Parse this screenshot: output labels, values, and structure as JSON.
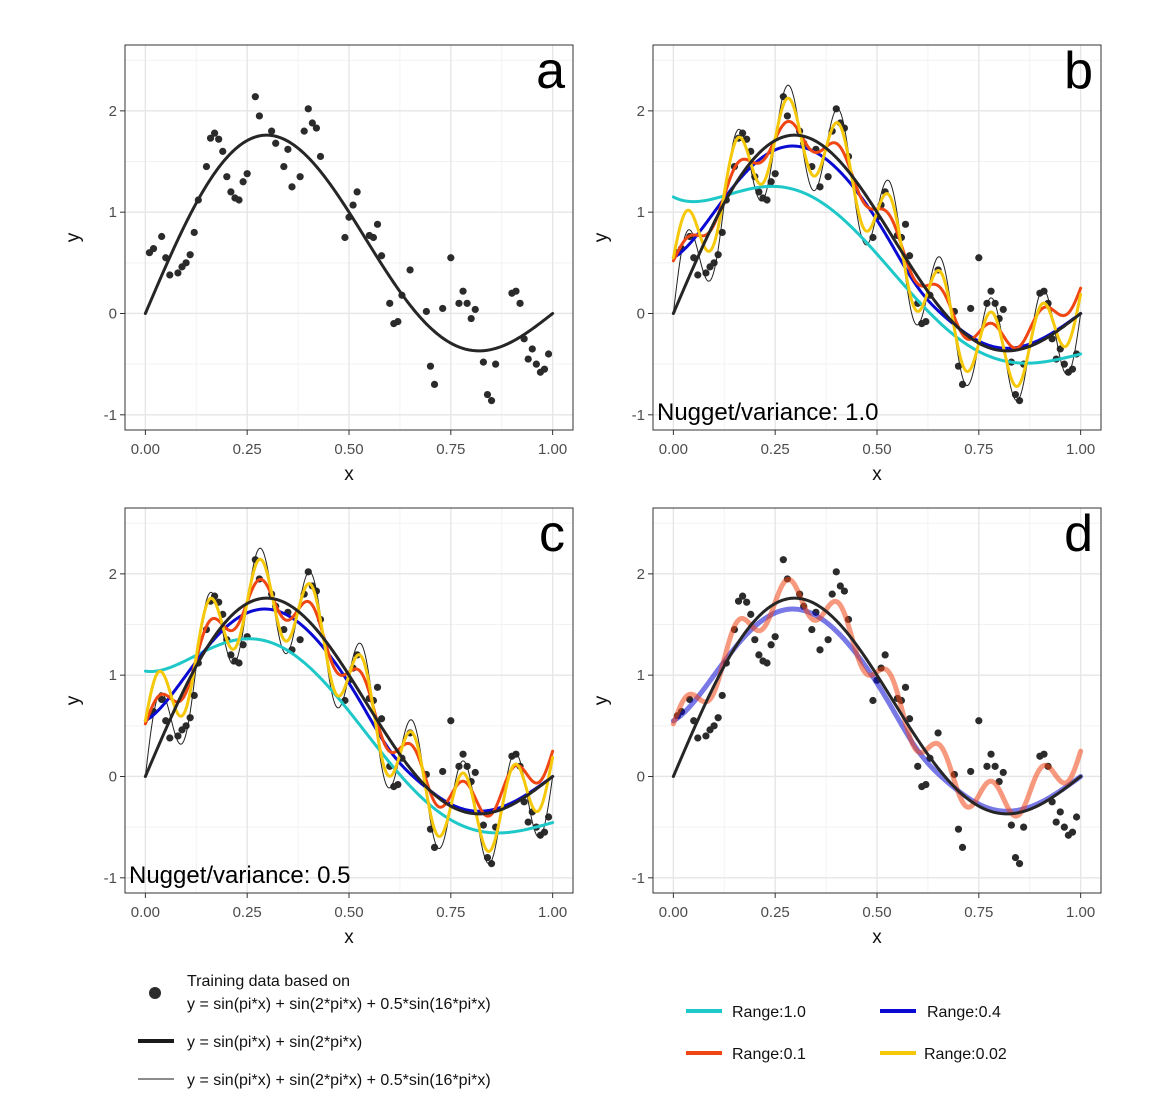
{
  "chart_data": {
    "type": "line",
    "functions": {
      "base": "y = sin(pi*x) + sin(2*pi*x)",
      "noisy": "y = sin(pi*x) + sin(2*pi*x) + 0.5*sin(16*pi*x)"
    },
    "colors": {
      "data_points": "#2b2b2b",
      "base_curve": "#262626",
      "range_1_0": "#1ec8c8",
      "range_0_4": "#0a0ad2",
      "range_0_1": "#f04614",
      "range_0_02": "#f5c80a"
    },
    "training_x": [
      0.01,
      0.02,
      0.04,
      0.05,
      0.06,
      0.08,
      0.09,
      0.1,
      0.11,
      0.12,
      0.13,
      0.15,
      0.16,
      0.17,
      0.18,
      0.19,
      0.2,
      0.21,
      0.22,
      0.23,
      0.24,
      0.25,
      0.27,
      0.28,
      0.31,
      0.32,
      0.34,
      0.35,
      0.36,
      0.38,
      0.39,
      0.4,
      0.41,
      0.42,
      0.43,
      0.49,
      0.5,
      0.51,
      0.52,
      0.55,
      0.56,
      0.57,
      0.58,
      0.6,
      0.61,
      0.62,
      0.63,
      0.65,
      0.69,
      0.7,
      0.71,
      0.73,
      0.75,
      0.77,
      0.78,
      0.79,
      0.8,
      0.81,
      0.83,
      0.84,
      0.85,
      0.86,
      0.9,
      0.91,
      0.92,
      0.93,
      0.94,
      0.95,
      0.96,
      0.97,
      0.98,
      0.99
    ],
    "training_y": [
      0.6,
      0.64,
      0.76,
      0.55,
      0.38,
      0.4,
      0.46,
      0.5,
      0.58,
      0.8,
      1.12,
      1.45,
      1.73,
      1.78,
      1.72,
      1.6,
      1.35,
      1.2,
      1.14,
      1.12,
      1.3,
      1.38,
      2.14,
      1.95,
      1.8,
      1.68,
      1.45,
      1.62,
      1.25,
      1.35,
      1.8,
      2.02,
      1.88,
      1.83,
      1.55,
      0.75,
      0.95,
      1.07,
      1.2,
      0.77,
      0.75,
      0.88,
      0.57,
      0.1,
      -0.1,
      -0.08,
      0.18,
      0.43,
      0.02,
      -0.52,
      -0.7,
      0.05,
      0.55,
      0.1,
      0.22,
      0.1,
      -0.05,
      0.04,
      -0.48,
      -0.8,
      -0.86,
      -0.5,
      0.2,
      0.22,
      0.1,
      -0.25,
      -0.45,
      -0.35,
      -0.5,
      -0.58,
      -0.55,
      -0.4
    ],
    "panels": [
      {
        "label": "a",
        "annotation": "",
        "series": [
          "base"
        ]
      },
      {
        "label": "b",
        "annotation": "Nugget/variance:  1.0",
        "series": [
          "noisy",
          "range_1_0",
          "range_0_4",
          "range_0_1",
          "range_0_02",
          "base"
        ]
      },
      {
        "label": "c",
        "annotation": "Nugget/variance:  0.5",
        "series": [
          "noisy",
          "range_1_0",
          "range_0_4",
          "range_0_1",
          "range_0_02",
          "base"
        ]
      },
      {
        "label": "d",
        "annotation": "",
        "series": [
          "range_0_4",
          "range_0_1",
          "base"
        ]
      }
    ],
    "xlabel": "x",
    "ylabel": "y",
    "xlim": [
      -0.05,
      1.05
    ],
    "ylim": [
      -1.15,
      2.65
    ],
    "xticks": [
      "0.00",
      "0.25",
      "0.50",
      "0.75",
      "1.00"
    ],
    "yticks": [
      "-1",
      "0",
      "1",
      "2"
    ],
    "xtick_values": [
      0,
      0.25,
      0.5,
      0.75,
      1
    ],
    "ytick_values": [
      -1,
      0,
      1,
      2
    ],
    "legend_left": {
      "points_line1": "Training data based on",
      "points_line2": "y = sin(pi*x) + sin(2*pi*x) + 0.5*sin(16*pi*x)",
      "thick": "y = sin(pi*x) + sin(2*pi*x)",
      "thin": "y = sin(pi*x) + sin(2*pi*x) + 0.5*sin(16*pi*x)"
    },
    "legend_right": {
      "range_1_0": "Range:1.0",
      "range_0_4": "Range:0.4",
      "range_0_1": "Range:0.1",
      "range_0_02": "Range:0.02"
    }
  }
}
